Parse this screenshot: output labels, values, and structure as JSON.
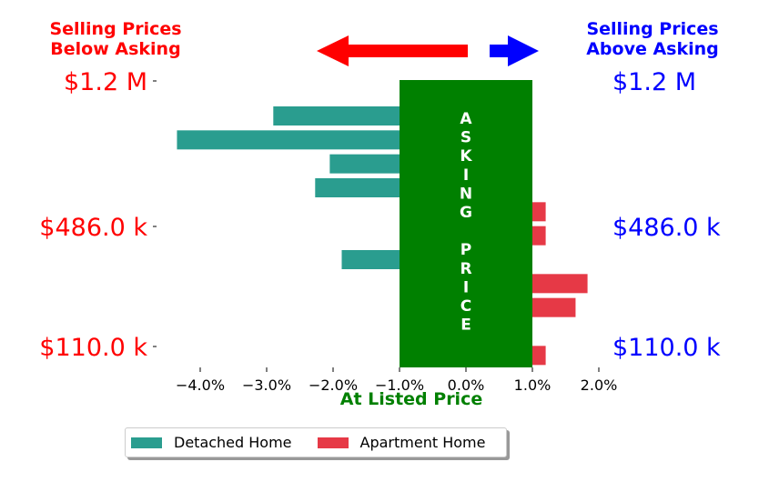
{
  "header_left": {
    "line1": "Selling Prices",
    "line2": "Below Asking"
  },
  "header_right": {
    "line1": "Selling Prices",
    "line2": "Above Asking"
  },
  "colors": {
    "detached": "#2a9d8f",
    "apartment": "#e63946",
    "asking_band": "#008000",
    "below": "#ff0000",
    "above": "#0000ff"
  },
  "chart_data": {
    "type": "bar",
    "orientation": "horizontal",
    "xlabel": "At Listed Price",
    "xlim": [
      -4.4,
      2.0
    ],
    "x_ticks": [
      -4,
      -3,
      -2,
      -1,
      0,
      1,
      2
    ],
    "x_tick_labels": [
      "−4.0%",
      "−3.0%",
      "−2.0%",
      "−1.0%",
      "0.0%",
      "1.0%",
      "2.0%"
    ],
    "y_ticks": [
      "$1.2 M",
      "$486.0 k",
      "$110.0 k"
    ],
    "asking_band": {
      "from": -1.0,
      "to": 1.0,
      "label": [
        "A",
        "S",
        "K",
        "I",
        "N",
        "G",
        "",
        "P",
        "R",
        "I",
        "C",
        "E"
      ]
    },
    "rows": 12,
    "series": [
      {
        "name": "Detached Home",
        "color": "#2a9d8f",
        "bars": [
          {
            "row": 1,
            "value": -2.9
          },
          {
            "row": 2,
            "value": -4.35
          },
          {
            "row": 3,
            "value": -2.05
          },
          {
            "row": 4,
            "value": -2.27
          },
          {
            "row": 7,
            "value": -1.87
          }
        ]
      },
      {
        "name": "Apartment Home",
        "color": "#e63946",
        "bars": [
          {
            "row": 5,
            "value": 1.2
          },
          {
            "row": 6,
            "value": 1.2
          },
          {
            "row": 8,
            "value": 1.83
          },
          {
            "row": 9,
            "value": 1.65
          },
          {
            "row": 11,
            "value": 1.2
          }
        ]
      }
    ],
    "legend": {
      "position": "bottom-center",
      "entries": [
        "Detached Home",
        "Apartment Home"
      ]
    }
  }
}
